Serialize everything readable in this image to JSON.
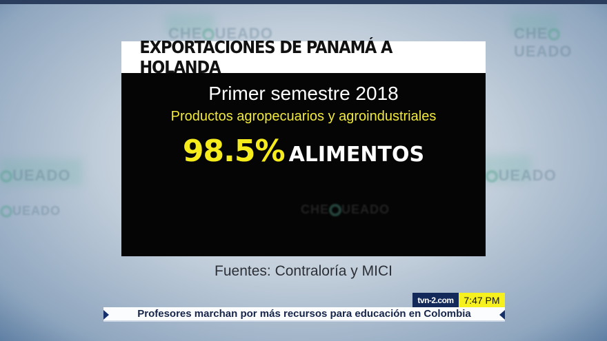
{
  "graphic": {
    "title": "EXPORTACIONES DE PANAMÁ A HOLANDA",
    "period": "Primer semestre 2018",
    "subtitle": "Productos agropecuarios y agroindustriales",
    "percentage": "98.5%",
    "category": "ALIMENTOS",
    "sources": "Fuentes: Contraloría y MICI"
  },
  "watermark": "CHEQUEADO",
  "lower_third": {
    "site": "tvn-2.com",
    "time": "7:47 PM",
    "headline": "Profesores marchan por más recursos para educación en Colombia"
  },
  "colors": {
    "accent_yellow": "#f6ec1c",
    "navy": "#13295a",
    "panel": "#050505"
  }
}
